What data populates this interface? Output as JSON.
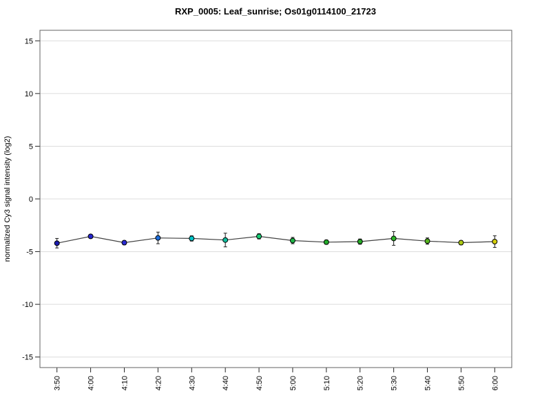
{
  "title": "RXP_0005: Leaf_sunrise; Os01g0114100_21723",
  "chart_data": {
    "type": "line",
    "title": "RXP_0005: Leaf_sunrise; Os01g0114100_21723",
    "xlabel": "",
    "ylabel": "normalized Cy3 signal intensity (log2)",
    "ylim": [
      -16,
      16
    ],
    "yticks": [
      15,
      10,
      5,
      0,
      -5,
      -10,
      -15
    ],
    "grid": true,
    "legend": "none",
    "categories": [
      "3:50",
      "4:00",
      "4:10",
      "4:20",
      "4:30",
      "4:40",
      "4:50",
      "5:00",
      "5:10",
      "5:20",
      "5:30",
      "5:40",
      "5:50",
      "6:00"
    ],
    "series": [
      {
        "name": "normalized Cy3 signal intensity",
        "values": [
          -4.2,
          -3.55,
          -4.15,
          -3.7,
          -3.75,
          -3.9,
          -3.55,
          -3.95,
          -4.1,
          -4.05,
          -3.75,
          -4.0,
          -4.15,
          -4.05
        ],
        "errors": [
          0.45,
          0.15,
          0.2,
          0.55,
          0.25,
          0.65,
          0.25,
          0.3,
          0.2,
          0.25,
          0.65,
          0.3,
          0.2,
          0.55
        ],
        "point_colors": [
          "#1C1CB0",
          "#2424CE",
          "#2A2AD2",
          "#1E6EDC",
          "#00C4C8",
          "#10BE9E",
          "#18CC74",
          "#1EB446",
          "#22AC2A",
          "#26AA26",
          "#2CB428",
          "#55B41E",
          "#AAC814",
          "#D4CE0A"
        ]
      }
    ],
    "style_colors": {
      "grid": "#DCDCDC",
      "box": "#606060",
      "line": "#404040",
      "tick": "#222222",
      "error_bar": "#1A1A1A",
      "marker_outline": "#000000"
    }
  }
}
